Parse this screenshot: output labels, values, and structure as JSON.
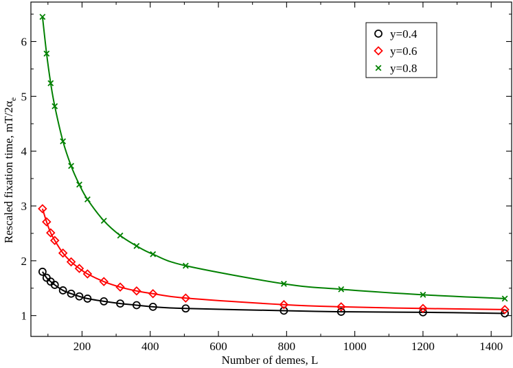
{
  "chart_data": {
    "type": "line",
    "title": "",
    "xlabel": "Number of demes, L",
    "ylabel_main": "Rescaled fixation time, mT/2α",
    "ylabel_subscript": "e",
    "xlim": [
      50,
      1460
    ],
    "ylim": [
      0.62,
      6.72
    ],
    "xticks": [
      200,
      400,
      600,
      800,
      1000,
      1200,
      1400
    ],
    "yticks": [
      1,
      2,
      3,
      4,
      5,
      6
    ],
    "xtick_labels": [
      "200",
      "400",
      "600",
      "800",
      "1000",
      "1200",
      "1400"
    ],
    "ytick_labels": [
      "1",
      "2",
      "3",
      "4",
      "5",
      "6"
    ],
    "grid": false,
    "legend_position": "top-right",
    "series": [
      {
        "name": "y=0.4",
        "marker": "circle",
        "color": "#000000",
        "x": [
          84,
          96,
          108,
          120,
          144,
          168,
          192,
          216,
          264,
          312,
          360,
          408,
          504,
          792,
          960,
          1200,
          1440
        ],
        "y": [
          1.8,
          1.69,
          1.62,
          1.56,
          1.46,
          1.4,
          1.35,
          1.31,
          1.26,
          1.22,
          1.19,
          1.16,
          1.13,
          1.09,
          1.07,
          1.06,
          1.04
        ]
      },
      {
        "name": "y=0.6",
        "marker": "diamond",
        "color": "#ff0000",
        "x": [
          84,
          96,
          108,
          120,
          144,
          168,
          192,
          216,
          264,
          312,
          360,
          408,
          504,
          792,
          960,
          1200,
          1440
        ],
        "y": [
          2.95,
          2.71,
          2.51,
          2.37,
          2.14,
          1.98,
          1.86,
          1.76,
          1.62,
          1.52,
          1.45,
          1.4,
          1.32,
          1.2,
          1.16,
          1.13,
          1.11
        ]
      },
      {
        "name": "y=0.8",
        "marker": "x",
        "color": "#008000",
        "x": [
          84,
          96,
          108,
          120,
          144,
          168,
          192,
          216,
          264,
          312,
          360,
          408,
          504,
          792,
          960,
          1200,
          1440
        ],
        "y": [
          6.45,
          5.78,
          5.24,
          4.82,
          4.18,
          3.73,
          3.39,
          3.12,
          2.73,
          2.46,
          2.27,
          2.12,
          1.91,
          1.58,
          1.48,
          1.38,
          1.31
        ]
      }
    ]
  }
}
